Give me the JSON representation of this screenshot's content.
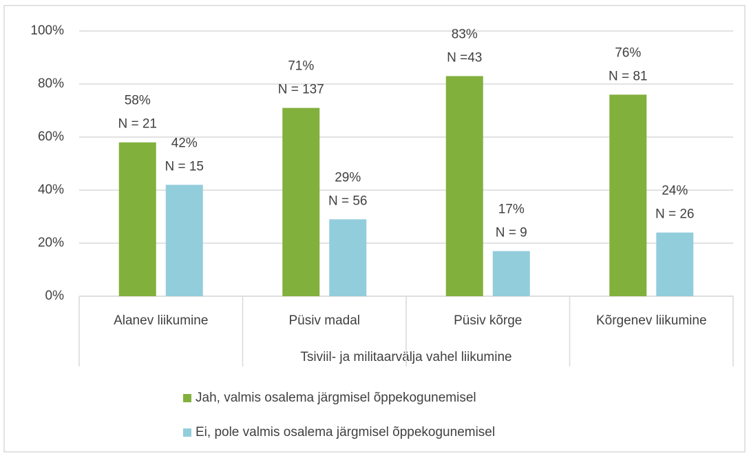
{
  "chart_data": {
    "type": "bar",
    "x_label": "Tsiviil- ja militaarvälja vahel liikumine",
    "categories": [
      "Alanev liikumine",
      "Püsiv madal",
      "Püsiv kõrge",
      "Kõrgenev liikumine"
    ],
    "series": [
      {
        "name": "Jah, valmis osalema järgmisel õppekogunemisel",
        "color": "#82b03c",
        "values": [
          58,
          71,
          83,
          76
        ],
        "value_labels": [
          "58%",
          "71%",
          "83%",
          "76%"
        ],
        "n_labels": [
          "N = 21",
          "N = 137",
          "N =43",
          "N = 81"
        ]
      },
      {
        "name": "Ei, pole valmis osalema järgmisel õppekogunemisel",
        "color": "#92cddc",
        "values": [
          42,
          29,
          17,
          24
        ],
        "value_labels": [
          "42%",
          "29%",
          "17%",
          "24%"
        ],
        "n_labels": [
          "N = 15",
          "N = 56",
          "N = 9",
          "N = 26"
        ]
      }
    ],
    "ylim": [
      0,
      100
    ],
    "yticks": [
      {
        "value": 0,
        "label": "0%"
      },
      {
        "value": 20,
        "label": "20%"
      },
      {
        "value": 40,
        "label": "40%"
      },
      {
        "value": 60,
        "label": "60%"
      },
      {
        "value": 80,
        "label": "80%"
      },
      {
        "value": 100,
        "label": "100%"
      }
    ],
    "grid": true,
    "legend": "bottom"
  }
}
